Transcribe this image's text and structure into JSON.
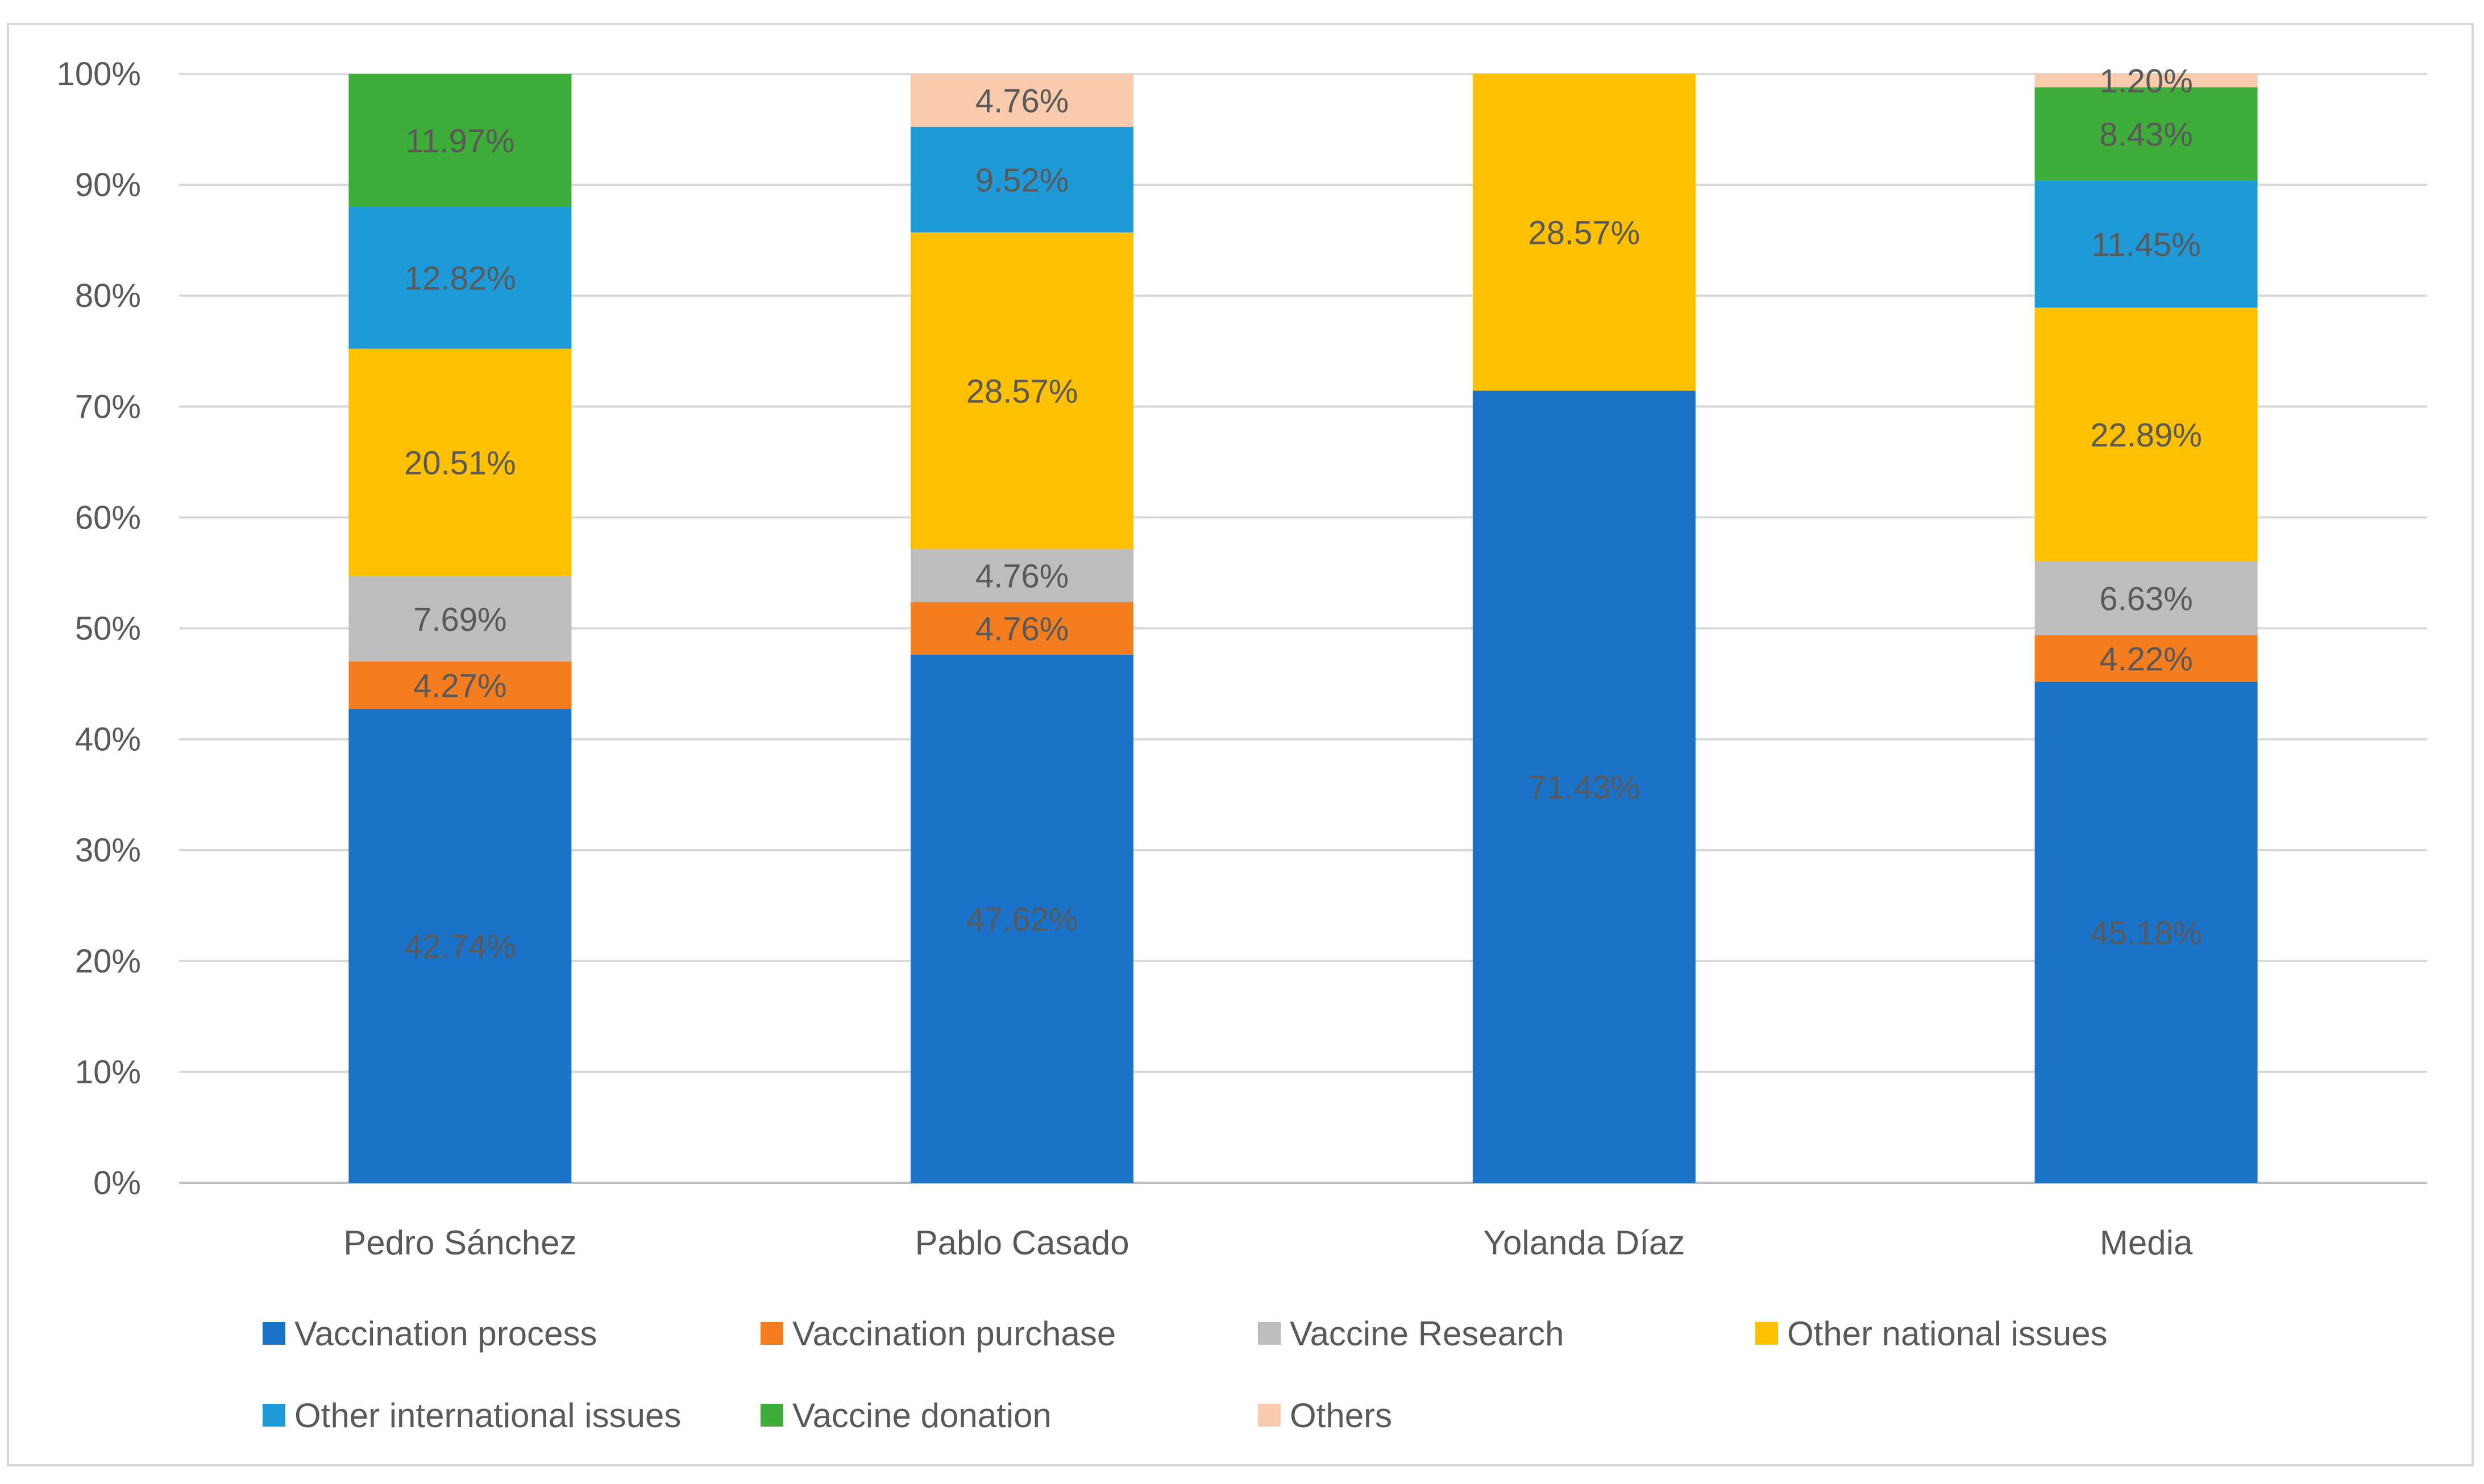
{
  "chart_data": {
    "type": "bar",
    "stacked": true,
    "title": "",
    "xlabel": "",
    "ylabel": "",
    "ylim": [
      0,
      100
    ],
    "yticks": [
      "0%",
      "10%",
      "20%",
      "30%",
      "40%",
      "50%",
      "60%",
      "70%",
      "80%",
      "90%",
      "100%"
    ],
    "grid": true,
    "legend_position": "bottom",
    "categories": [
      "Pedro Sánchez",
      "Pablo Casado",
      "Yolanda Díaz",
      "Media"
    ],
    "series": [
      {
        "name": "Vaccination process",
        "color": "#1a73c8",
        "values": [
          42.74,
          47.62,
          71.43,
          45.18
        ],
        "labels": [
          "42.74%",
          "47.62%",
          "71.43%",
          "45.18%"
        ]
      },
      {
        "name": "Vaccination purchase",
        "color": "#f47d20",
        "values": [
          4.27,
          4.76,
          0,
          4.22
        ],
        "labels": [
          "4.27%",
          "4.76%",
          "",
          "4.22%"
        ]
      },
      {
        "name": "Vaccine Research",
        "color": "#bebebe",
        "values": [
          7.69,
          4.76,
          0,
          6.63
        ],
        "labels": [
          "7.69%",
          "4.76%",
          "",
          "6.63%"
        ]
      },
      {
        "name": "Other national issues",
        "color": "#ffc000",
        "values": [
          20.51,
          28.57,
          28.57,
          22.89
        ],
        "labels": [
          "20.51%",
          "28.57%",
          "28.57%",
          "22.89%"
        ]
      },
      {
        "name": "Other international issues",
        "color": "#1f9ad9",
        "values": [
          12.82,
          9.52,
          0,
          11.45
        ],
        "labels": [
          "12.82%",
          "9.52%",
          "",
          "11.45%"
        ]
      },
      {
        "name": "Vaccine donation",
        "color": "#3fad3a",
        "values": [
          11.97,
          0,
          0,
          8.43
        ],
        "labels": [
          "11.97%",
          "",
          "",
          "8.43%"
        ]
      },
      {
        "name": "Others",
        "color": "#f9cbac",
        "values": [
          0,
          4.76,
          0,
          1.2
        ],
        "labels": [
          "",
          "4.76%",
          "",
          "1.20%"
        ]
      }
    ]
  }
}
